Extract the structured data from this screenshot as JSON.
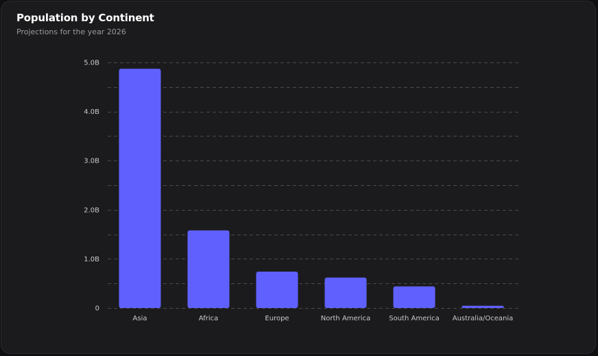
{
  "chart_data": {
    "type": "bar",
    "title": "Population by Continent",
    "subtitle": "Projections for the year 2026",
    "categories": [
      "Asia",
      "Africa",
      "Europe",
      "North America",
      "South America",
      "Australia/Oceania"
    ],
    "values": [
      4.87,
      1.58,
      0.74,
      0.62,
      0.44,
      0.046
    ],
    "unit": "B",
    "ylim": [
      0,
      5.0
    ],
    "yticks": [
      {
        "value": 0,
        "label": "0"
      },
      {
        "value": 1.0,
        "label": "1.0B"
      },
      {
        "value": 2.0,
        "label": "2.0B"
      },
      {
        "value": 3.0,
        "label": "3.0B"
      },
      {
        "value": 4.0,
        "label": "4.0B"
      },
      {
        "value": 5.0,
        "label": "5.0B"
      }
    ],
    "grid": true,
    "bar_color": "#6060ff",
    "xlabel": "",
    "ylabel": ""
  }
}
